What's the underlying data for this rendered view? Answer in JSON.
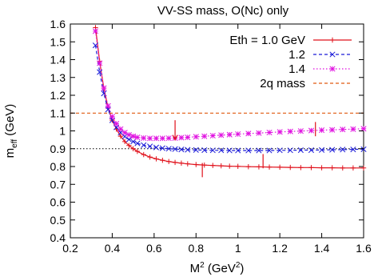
{
  "chart_data": {
    "type": "line",
    "title": "VV-SS mass, O(Nc) only",
    "xlabel": "M",
    "xlabel_sup": "2",
    "xlabel_unit_open": " (GeV",
    "xlabel_unit_sup": "2",
    "xlabel_unit_close": ")",
    "ylabel": "m",
    "ylabel_sub": "eff",
    "ylabel_unit": " (GeV)",
    "xlim": [
      0.2,
      1.6
    ],
    "ylim": [
      0.4,
      1.6
    ],
    "xticks": [
      0.2,
      0.4,
      0.6,
      0.8,
      1,
      1.2,
      1.4,
      1.6
    ],
    "xtick_labels": [
      "0.2",
      "0.4",
      "0.6",
      "0.8",
      "1",
      "1.2",
      "1.4",
      "1.6"
    ],
    "yticks": [
      0.4,
      0.5,
      0.6,
      0.7,
      0.8,
      0.9,
      1,
      1.1,
      1.2,
      1.3,
      1.4,
      1.5,
      1.6
    ],
    "ytick_labels": [
      "0.4",
      "0.5",
      "0.6",
      "0.7",
      "0.8",
      "0.9",
      "1",
      "1.1",
      "1.2",
      "1.3",
      "1.4",
      "1.5",
      "1.6"
    ],
    "grid": false,
    "legend_position": "top-right",
    "series": [
      {
        "name": "Eth = 1.0 GeV",
        "color": "#e0101a",
        "dash": "solid",
        "marker": "plus",
        "x": [
          0.32,
          0.34,
          0.36,
          0.38,
          0.4,
          0.42,
          0.44,
          0.46,
          0.48,
          0.5,
          0.52,
          0.55,
          0.58,
          0.61,
          0.64,
          0.67,
          0.7,
          0.73,
          0.76,
          0.8,
          0.84,
          0.88,
          0.92,
          0.96,
          1.0,
          1.05,
          1.1,
          1.15,
          1.2,
          1.25,
          1.3,
          1.35,
          1.4,
          1.45,
          1.5,
          1.55,
          1.6
        ],
        "y": [
          1.58,
          1.39,
          1.24,
          1.13,
          1.06,
          1.01,
          0.97,
          0.94,
          0.918,
          0.9,
          0.885,
          0.867,
          0.853,
          0.843,
          0.835,
          0.828,
          0.823,
          0.819,
          0.815,
          0.811,
          0.808,
          0.806,
          0.804,
          0.802,
          0.801,
          0.799,
          0.798,
          0.797,
          0.796,
          0.795,
          0.794,
          0.794,
          0.793,
          0.793,
          0.792,
          0.792,
          0.792
        ]
      },
      {
        "name": "1.2",
        "color": "#1a1ad8",
        "dash": "dashed",
        "marker": "cross",
        "x": [
          0.32,
          0.34,
          0.36,
          0.38,
          0.4,
          0.42,
          0.44,
          0.46,
          0.48,
          0.5,
          0.52,
          0.55,
          0.58,
          0.61,
          0.64,
          0.67,
          0.7,
          0.73,
          0.76,
          0.8,
          0.84,
          0.88,
          0.92,
          0.96,
          1.0,
          1.05,
          1.1,
          1.15,
          1.2,
          1.25,
          1.3,
          1.35,
          1.4,
          1.45,
          1.5,
          1.55,
          1.6
        ],
        "y": [
          1.48,
          1.33,
          1.21,
          1.12,
          1.06,
          1.02,
          0.99,
          0.968,
          0.952,
          0.94,
          0.93,
          0.92,
          0.913,
          0.907,
          0.903,
          0.9,
          0.898,
          0.896,
          0.894,
          0.893,
          0.892,
          0.891,
          0.891,
          0.89,
          0.89,
          0.89,
          0.89,
          0.89,
          0.891,
          0.891,
          0.892,
          0.892,
          0.893,
          0.894,
          0.895,
          0.896,
          0.897
        ]
      },
      {
        "name": "1.4",
        "color": "#e010e0",
        "dash": "dotted",
        "marker": "star",
        "x": [
          0.32,
          0.34,
          0.36,
          0.38,
          0.4,
          0.42,
          0.44,
          0.46,
          0.48,
          0.5,
          0.52,
          0.55,
          0.58,
          0.61,
          0.64,
          0.67,
          0.7,
          0.73,
          0.76,
          0.8,
          0.84,
          0.88,
          0.92,
          0.96,
          1.0,
          1.05,
          1.1,
          1.15,
          1.2,
          1.25,
          1.3,
          1.35,
          1.4,
          1.45,
          1.5,
          1.55,
          1.6
        ],
        "y": [
          1.56,
          1.38,
          1.24,
          1.14,
          1.08,
          1.04,
          1.01,
          0.99,
          0.978,
          0.97,
          0.964,
          0.96,
          0.958,
          0.958,
          0.958,
          0.959,
          0.96,
          0.962,
          0.964,
          0.967,
          0.97,
          0.973,
          0.976,
          0.979,
          0.982,
          0.985,
          0.988,
          0.991,
          0.994,
          0.997,
          0.999,
          1.002,
          1.004,
          1.006,
          1.008,
          1.01,
          1.012
        ]
      },
      {
        "name": "2q mass",
        "color": "#e05a10",
        "dash": "dashed",
        "marker": "none",
        "x": [
          0.2,
          1.6
        ],
        "y": [
          1.1,
          1.1
        ]
      }
    ],
    "reference_lines": [
      {
        "y": 0.9,
        "color": "#000000",
        "dash": "dotted"
      }
    ],
    "markers": [
      {
        "x": 0.7,
        "y_top": 1.06,
        "y_bottom": 0.95,
        "color": "#e0101a",
        "style": "arrow-down"
      },
      {
        "x": 0.83,
        "y_top": 0.82,
        "y_bottom": 0.74,
        "color": "#e0101a",
        "style": "bar"
      },
      {
        "x": 1.12,
        "y_top": 0.87,
        "y_bottom": 0.79,
        "color": "#e0101a",
        "style": "bar"
      },
      {
        "x": 1.37,
        "y_top": 1.05,
        "y_bottom": 0.97,
        "color": "#e0101a",
        "style": "bar"
      }
    ]
  }
}
